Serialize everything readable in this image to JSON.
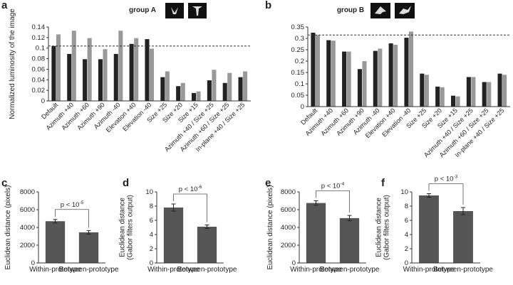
{
  "chart_data": [
    {
      "type": "grouped_bar",
      "panel_label": "a",
      "title": "group A",
      "ylabel": [
        "Normalized luminosity of the image"
      ],
      "categories": [
        "Default",
        "Azimuth +40",
        "Azimuth +60",
        "Azimuth +90",
        "Azimuth -40",
        "Elevation +40",
        "Elevation -40",
        "Size +25",
        "Size +20",
        "Size +15",
        "Azimuth +40 / Size +25",
        "Azimuth +60 / Size +25",
        "In-plane +40 / Size +25"
      ],
      "series": [
        {
          "color": "#222222",
          "values": [
            0.104,
            0.089,
            0.079,
            0.079,
            0.089,
            0.108,
            0.117,
            0.045,
            0.028,
            0.015,
            0.039,
            0.034,
            0.045
          ]
        },
        {
          "color": "#999999",
          "values": [
            0.126,
            0.133,
            0.119,
            0.098,
            0.133,
            0.119,
            0.099,
            0.056,
            0.034,
            0.018,
            0.059,
            0.053,
            0.056
          ]
        }
      ],
      "reference_line": 0.104,
      "ylim": [
        0,
        0.14
      ],
      "yticks": [
        0,
        0.02,
        0.04,
        0.06,
        0.08,
        0.1,
        0.12,
        0.14
      ]
    },
    {
      "type": "grouped_bar",
      "panel_label": "b",
      "title": "group B",
      "categories": [
        "Default",
        "Azimuth +40",
        "Azimuth +60",
        "Azimuth +90",
        "Azimuth -40",
        "Elevation +40",
        "Elevation -40",
        "Size +25",
        "Size +20",
        "Size +15",
        "Azimuth +40 / Size +25",
        "Azimuth +60 / Size +25",
        "In-plane +40 / Size +25"
      ],
      "series": [
        {
          "color": "#222222",
          "values": [
            0.325,
            0.292,
            0.242,
            0.165,
            0.245,
            0.278,
            0.303,
            0.145,
            0.088,
            0.048,
            0.13,
            0.108,
            0.145
          ]
        },
        {
          "color": "#999999",
          "values": [
            0.315,
            0.29,
            0.242,
            0.2,
            0.255,
            0.272,
            0.33,
            0.14,
            0.085,
            0.045,
            0.13,
            0.108,
            0.14
          ]
        }
      ],
      "reference_line": 0.315,
      "ylim": [
        0,
        0.35
      ],
      "yticks": [
        0,
        0.05,
        0.1,
        0.15,
        0.2,
        0.25,
        0.3,
        0.35
      ]
    },
    {
      "type": "bar",
      "panel_label": "c",
      "ylabel": [
        "Euclidean distance (pixels)"
      ],
      "categories": [
        "Within-prototype",
        "Between-prototype"
      ],
      "values": [
        4700,
        3450
      ],
      "errors": [
        200,
        200
      ],
      "color": "#555555",
      "annotation": {
        "text": "p < 10",
        "exponent": "-5"
      },
      "ylim": [
        0,
        8000
      ],
      "yticks": [
        0,
        2000,
        4000,
        6000,
        8000
      ]
    },
    {
      "type": "bar",
      "panel_label": "d",
      "ylabel": [
        "Euclidean distance",
        "(Gabor filters output)"
      ],
      "categories": [
        "Within-prototype",
        "Between-prototype"
      ],
      "values": [
        7.8,
        5.1
      ],
      "errors": [
        0.5,
        0.25
      ],
      "color": "#555555",
      "annotation": {
        "text": "p < 10",
        "exponent": "-6"
      },
      "ylim": [
        0,
        10
      ],
      "yticks": [
        0,
        2,
        4,
        6,
        8,
        10
      ]
    },
    {
      "type": "bar",
      "panel_label": "e",
      "ylabel": [
        "Euclidean distance (pixels)"
      ],
      "categories": [
        "Within-prototype",
        "Between-prototype"
      ],
      "values": [
        6750,
        5050
      ],
      "errors": [
        250,
        300
      ],
      "color": "#555555",
      "annotation": {
        "text": "p < 10",
        "exponent": "-4"
      },
      "ylim": [
        0,
        8000
      ],
      "yticks": [
        0,
        2000,
        4000,
        6000,
        8000
      ]
    },
    {
      "type": "bar",
      "panel_label": "f",
      "ylabel": [
        "Euclidean distance",
        "(Gabor filters output)"
      ],
      "categories": [
        "Within-prototype",
        "Between-prototype"
      ],
      "values": [
        9.5,
        7.3
      ],
      "errors": [
        0.25,
        0.5
      ],
      "color": "#555555",
      "annotation": {
        "text": "p < 10",
        "exponent": "-3"
      },
      "ylim": [
        0,
        10
      ],
      "yticks": [
        0,
        2,
        4,
        6,
        8,
        10
      ]
    }
  ]
}
